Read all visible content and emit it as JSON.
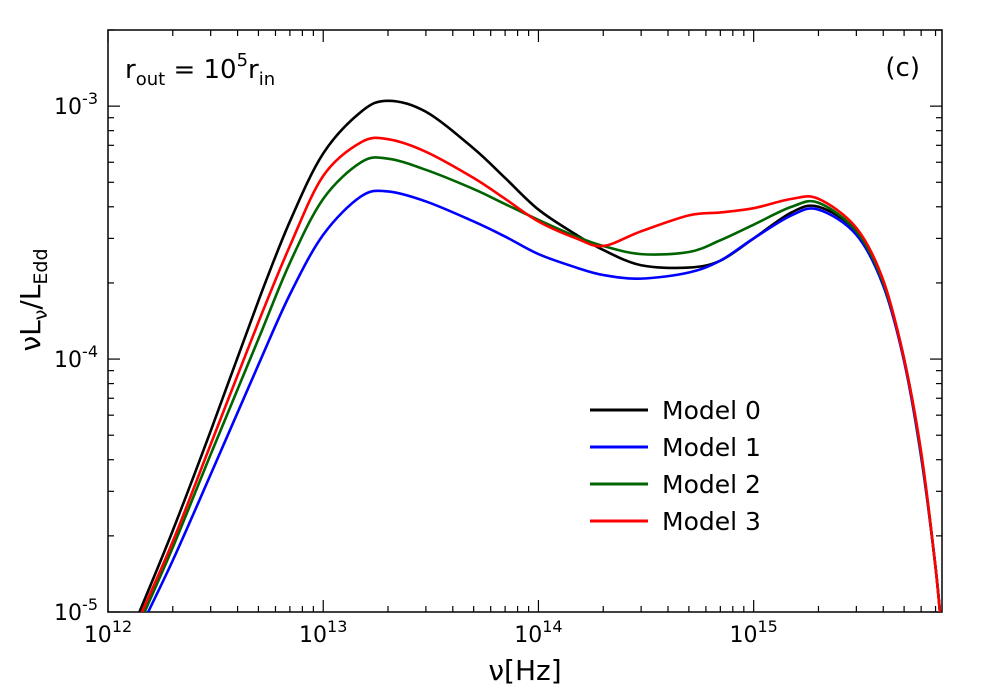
{
  "chart_data": {
    "type": "line",
    "title": "",
    "xlabel": "ν[Hz]",
    "ylabel": "νLν/LEdd",
    "xscale": "log",
    "yscale": "log",
    "xlim": [
      1000000000000.0,
      7500000000000000.0
    ],
    "ylim": [
      1e-05,
      0.002
    ],
    "x_ticks": [
      {
        "value": 1000000000000.0,
        "base": "10",
        "exp": "12"
      },
      {
        "value": 10000000000000.0,
        "base": "10",
        "exp": "13"
      },
      {
        "value": 100000000000000.0,
        "base": "10",
        "exp": "14"
      },
      {
        "value": 1000000000000000.0,
        "base": "10",
        "exp": "15"
      }
    ],
    "y_ticks": [
      {
        "value": 1e-05,
        "base": "10",
        "exp": "-5"
      },
      {
        "value": 0.0001,
        "base": "10",
        "exp": "-4"
      },
      {
        "value": 0.001,
        "base": "10",
        "exp": "-3"
      }
    ],
    "annotations": {
      "condition": {
        "r1": "r",
        "s1": "out",
        "mid": " = 10",
        "sup": "5",
        "r2": "r",
        "s2": "in"
      },
      "panel_label": "(c)"
    },
    "legend_position": "center-right",
    "x": [
      1400000000000.0,
      2000000000000.0,
      3000000000000.0,
      5000000000000.0,
      7000000000000.0,
      10000000000000.0,
      15000000000000.0,
      20000000000000.0,
      30000000000000.0,
      50000000000000.0,
      70000000000000.0,
      100000000000000.0,
      150000000000000.0,
      200000000000000.0,
      300000000000000.0,
      500000000000000.0,
      700000000000000.0,
      1000000000000000.0,
      1500000000000000.0,
      2000000000000000.0,
      3000000000000000.0,
      4000000000000000.0,
      5000000000000000.0,
      6000000000000000.0,
      7000000000000000.0,
      7500000000000000.0
    ],
    "series": [
      {
        "name": "Model 0",
        "color": "#000000",
        "values": [
          1e-05,
          2.1e-05,
          5.2e-05,
          0.00017,
          0.00035,
          0.00065,
          0.00095,
          0.00105,
          0.00095,
          0.00068,
          0.00052,
          0.00039,
          0.00031,
          0.00027,
          0.000235,
          0.00023,
          0.000245,
          0.0003,
          0.00038,
          0.0004,
          0.00032,
          0.0002,
          0.0001,
          4.2e-05,
          1.5e-05,
          8e-06
        ]
      },
      {
        "name": "Model 1",
        "color": "#0000ff",
        "values": [
          8.5e-06,
          1.6e-05,
          3.5e-05,
          9.5e-05,
          0.00018,
          0.00031,
          0.00044,
          0.00046,
          0.00042,
          0.00035,
          0.000305,
          0.00026,
          0.00023,
          0.000215,
          0.000208,
          0.00022,
          0.000245,
          0.0003,
          0.00037,
          0.00039,
          0.00031,
          0.000195,
          9.8e-05,
          4.1e-05,
          1.5e-05,
          8e-06
        ]
      },
      {
        "name": "Model 2",
        "color": "#006400",
        "values": [
          9e-06,
          1.8e-05,
          4.2e-05,
          0.00012,
          0.00024,
          0.00043,
          0.0006,
          0.00062,
          0.00056,
          0.00047,
          0.00041,
          0.000355,
          0.000305,
          0.00028,
          0.00026,
          0.000265,
          0.000295,
          0.00034,
          0.0004,
          0.000415,
          0.00032,
          0.0002,
          0.0001,
          4.2e-05,
          1.5e-05,
          8e-06
        ]
      },
      {
        "name": "Model 3",
        "color": "#ff0000",
        "values": [
          9.5e-06,
          1.9e-05,
          4.6e-05,
          0.00014,
          0.00028,
          0.00053,
          0.00072,
          0.00074,
          0.00066,
          0.00052,
          0.00043,
          0.00035,
          0.0003,
          0.00028,
          0.00032,
          0.00037,
          0.00038,
          0.000395,
          0.00043,
          0.00043,
          0.00033,
          0.000205,
          0.0001,
          4.3e-05,
          1.5e-05,
          8e-06
        ]
      }
    ]
  }
}
